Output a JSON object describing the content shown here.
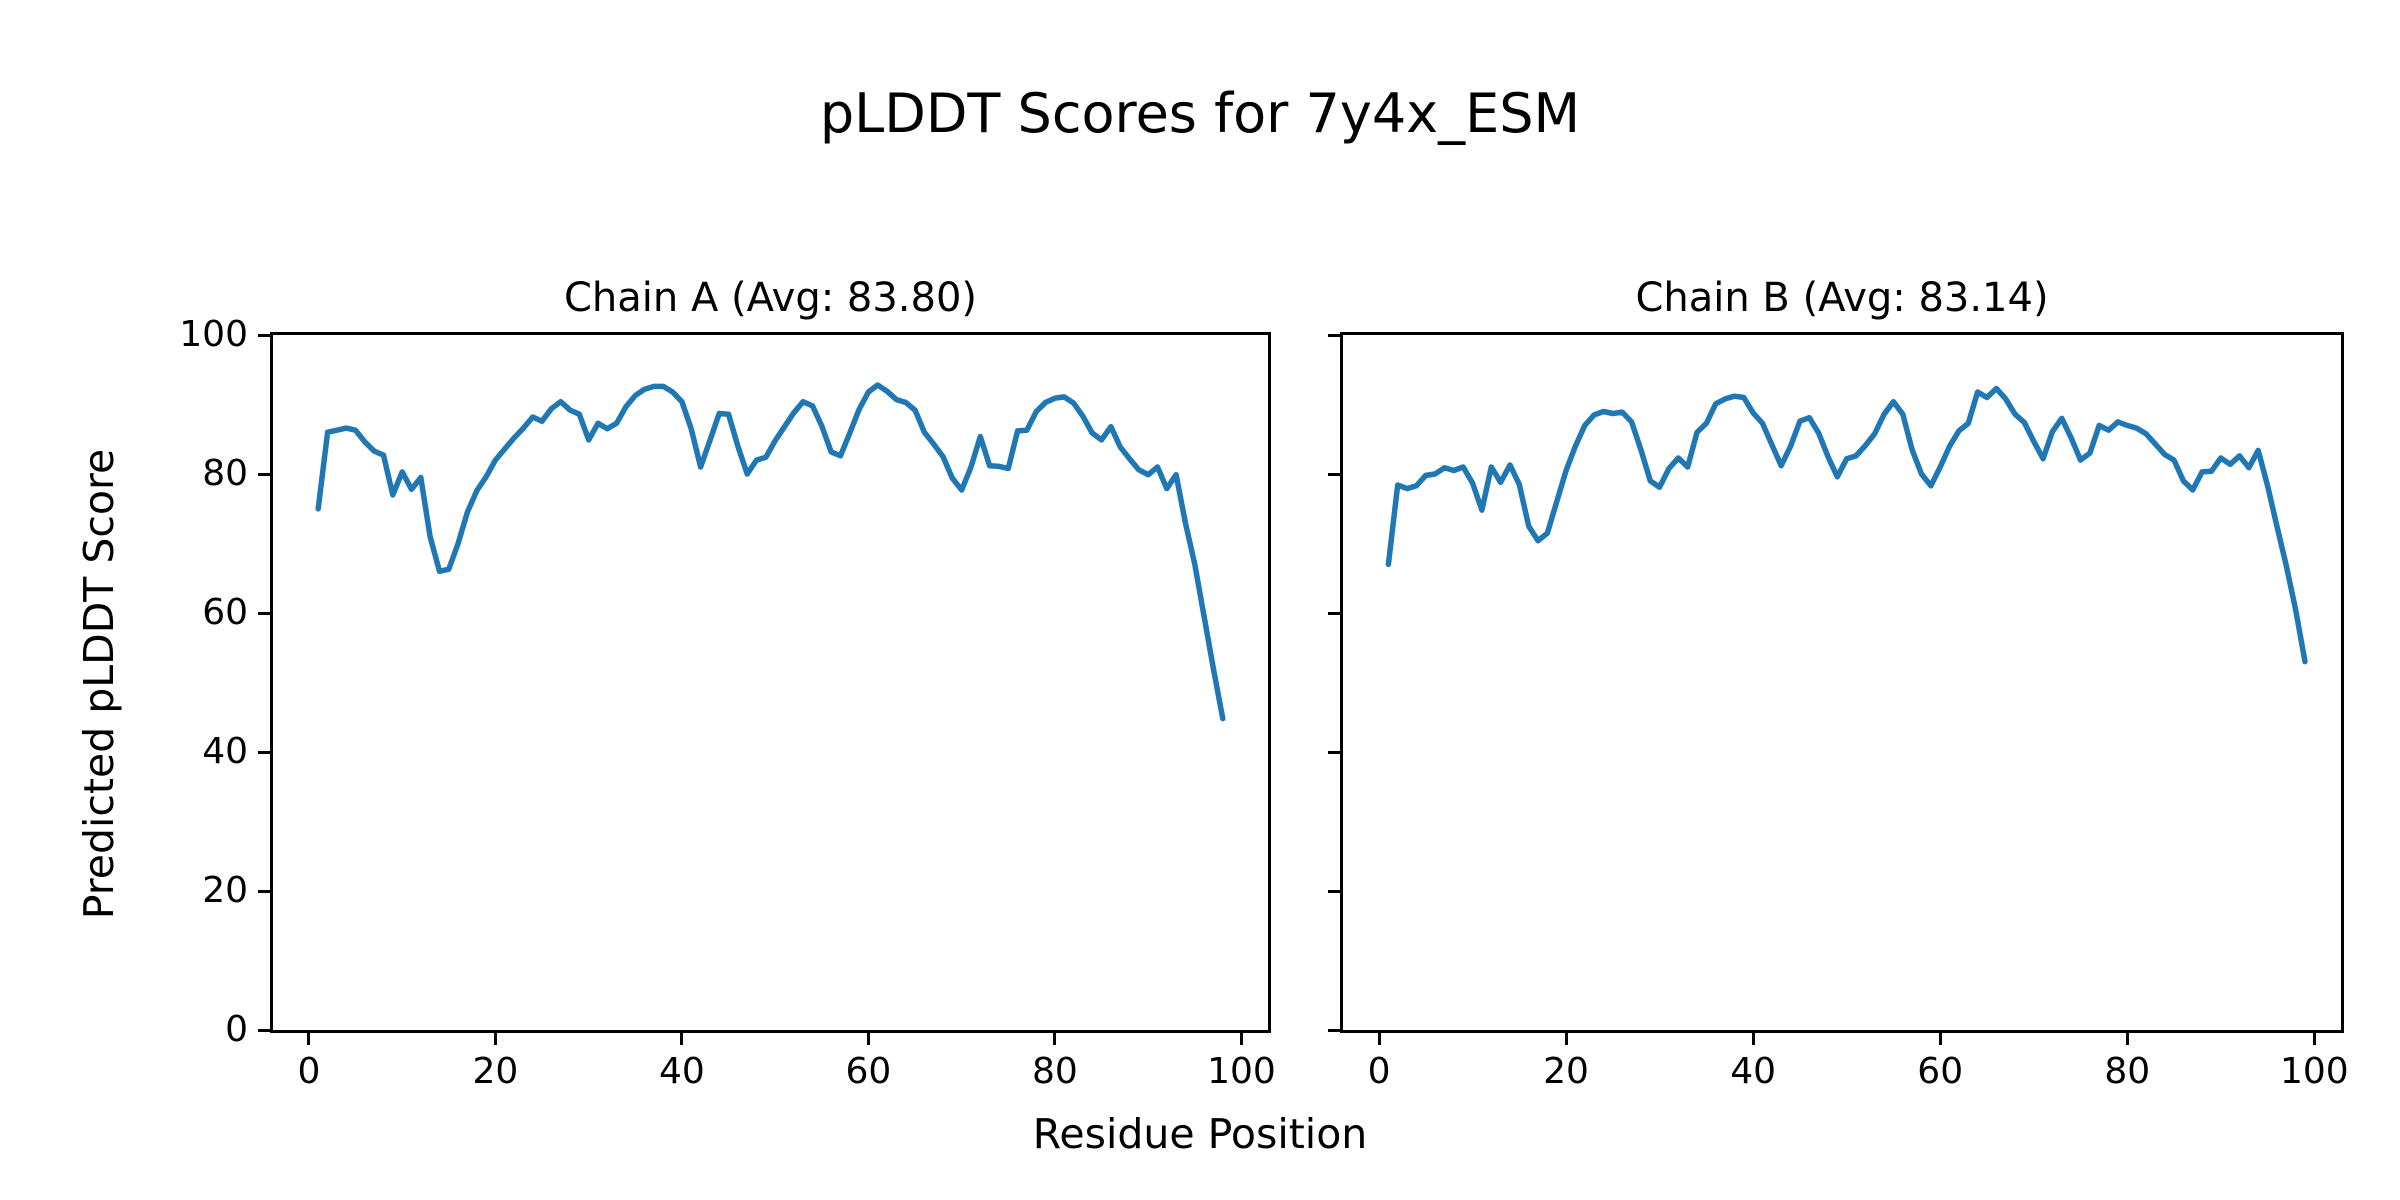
{
  "figure": {
    "title": "pLDDT Scores for 7y4x_ESM",
    "xlabel": "Residue Position",
    "ylabel": "Predicted pLDDT Score"
  },
  "chart_data": [
    {
      "type": "line",
      "title": "Chain A (Avg: 83.80)",
      "chain": "A",
      "avg": 83.8,
      "line_color": "#1f77b4",
      "x_start": 1,
      "xlim": [
        -3.85,
        102.85
      ],
      "ylim": [
        0,
        100
      ],
      "xticks": [
        0,
        20,
        40,
        60,
        80,
        100
      ],
      "yticks": [
        0,
        20,
        40,
        60,
        80,
        100
      ],
      "show_ytick_labels": true,
      "grid": false,
      "values": [
        75.0,
        86.0,
        86.3,
        86.6,
        86.3,
        84.6,
        83.3,
        82.7,
        77.0,
        80.3,
        77.8,
        79.5,
        71.0,
        66.0,
        66.3,
        70.0,
        74.5,
        77.6,
        79.6,
        82.0,
        83.6,
        85.2,
        86.6,
        88.2,
        87.6,
        89.4,
        90.4,
        89.2,
        88.6,
        84.9,
        87.3,
        86.5,
        87.3,
        89.7,
        91.3,
        92.2,
        92.6,
        92.6,
        91.8,
        90.4,
        86.5,
        81.0,
        84.8,
        88.7,
        88.6,
        84.0,
        80.0,
        82.0,
        82.4,
        84.8,
        86.8,
        88.8,
        90.4,
        89.8,
        86.9,
        83.2,
        82.6,
        85.9,
        89.3,
        91.8,
        92.8,
        91.9,
        90.7,
        90.3,
        89.2,
        86.0,
        84.3,
        82.5,
        79.4,
        77.7,
        81.0,
        85.4,
        81.2,
        81.1,
        80.8,
        86.2,
        86.3,
        89.0,
        90.3,
        90.9,
        91.1,
        90.2,
        88.3,
        85.9,
        84.9,
        86.8,
        83.9,
        82.2,
        80.6,
        79.9,
        81.0,
        77.9,
        79.9,
        72.9,
        67.0,
        59.5,
        52.0,
        44.8
      ]
    },
    {
      "type": "line",
      "title": "Chain B (Avg: 83.14)",
      "chain": "B",
      "avg": 83.14,
      "line_color": "#1f77b4",
      "x_start": 1,
      "xlim": [
        -3.85,
        102.85
      ],
      "ylim": [
        0,
        100
      ],
      "xticks": [
        0,
        20,
        40,
        60,
        80,
        100
      ],
      "yticks": [
        0,
        20,
        40,
        60,
        80,
        100
      ],
      "show_ytick_labels": false,
      "grid": false,
      "values": [
        67.0,
        78.4,
        77.9,
        78.3,
        79.8,
        80.0,
        80.9,
        80.5,
        81.0,
        78.7,
        74.8,
        81.0,
        78.8,
        81.3,
        78.5,
        72.5,
        70.4,
        71.5,
        76.0,
        80.5,
        84.0,
        87.0,
        88.5,
        89.0,
        88.7,
        88.9,
        87.5,
        83.5,
        79.0,
        78.1,
        80.8,
        82.3,
        81.0,
        86.0,
        87.3,
        90.1,
        90.8,
        91.2,
        91.0,
        88.8,
        87.3,
        84.2,
        81.2,
        84.0,
        87.6,
        88.1,
        85.9,
        82.5,
        79.6,
        82.2,
        82.6,
        84.1,
        85.8,
        88.6,
        90.4,
        88.6,
        83.5,
        80.0,
        78.3,
        81.0,
        84.0,
        86.2,
        87.3,
        91.8,
        91.0,
        92.3,
        90.8,
        88.6,
        87.4,
        84.7,
        82.2,
        86.1,
        88.0,
        85.2,
        82.0,
        83.0,
        87.0,
        86.3,
        87.5,
        87.0,
        86.6,
        85.8,
        84.3,
        82.8,
        82.0,
        79.0,
        77.7,
        80.3,
        80.4,
        82.3,
        81.4,
        82.6,
        80.9,
        83.4,
        78.3,
        72.5,
        66.8,
        60.5,
        53.0
      ]
    }
  ]
}
